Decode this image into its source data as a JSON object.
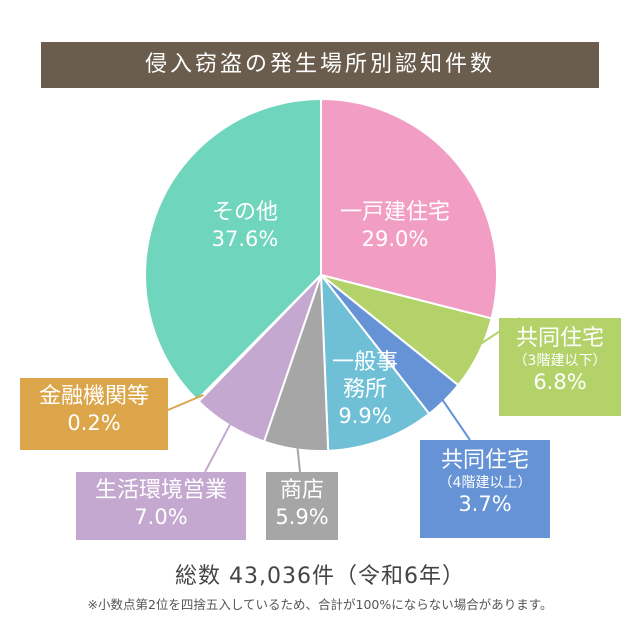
{
  "title": "侵入窃盗の発生場所別認知件数",
  "total_label": "総数 43,036件（令和6年）",
  "note": "※小数点第2位を四捨五入しているため、合計が100%にならない場合があります。",
  "chart_data": {
    "type": "pie",
    "title": "侵入窃盗の発生場所別認知件数",
    "slices": [
      {
        "name": "一戸建住宅",
        "sub": "",
        "value": 29.0,
        "pct_label": "29.0%",
        "color": "#f29ec4"
      },
      {
        "name": "共同住宅",
        "sub": "（3階建以下）",
        "value": 6.8,
        "pct_label": "6.8%",
        "color": "#b3d36a"
      },
      {
        "name": "共同住宅",
        "sub": "（4階建以上）",
        "value": 3.7,
        "pct_label": "3.7%",
        "color": "#6593d6"
      },
      {
        "name": "一般事務所",
        "sub": "",
        "value": 9.9,
        "pct_label": "9.9%",
        "color": "#6fc0d6"
      },
      {
        "name": "商店",
        "sub": "",
        "value": 5.9,
        "pct_label": "5.9%",
        "color": "#a6a6a6"
      },
      {
        "name": "生活環境営業",
        "sub": "",
        "value": 7.0,
        "pct_label": "7.0%",
        "color": "#c4a8d0"
      },
      {
        "name": "金融機関等",
        "sub": "",
        "value": 0.2,
        "pct_label": "0.2%",
        "color": "#dca54a"
      },
      {
        "name": "その他",
        "sub": "",
        "value": 37.6,
        "pct_label": "37.6%",
        "color": "#6fd5bd"
      }
    ]
  }
}
